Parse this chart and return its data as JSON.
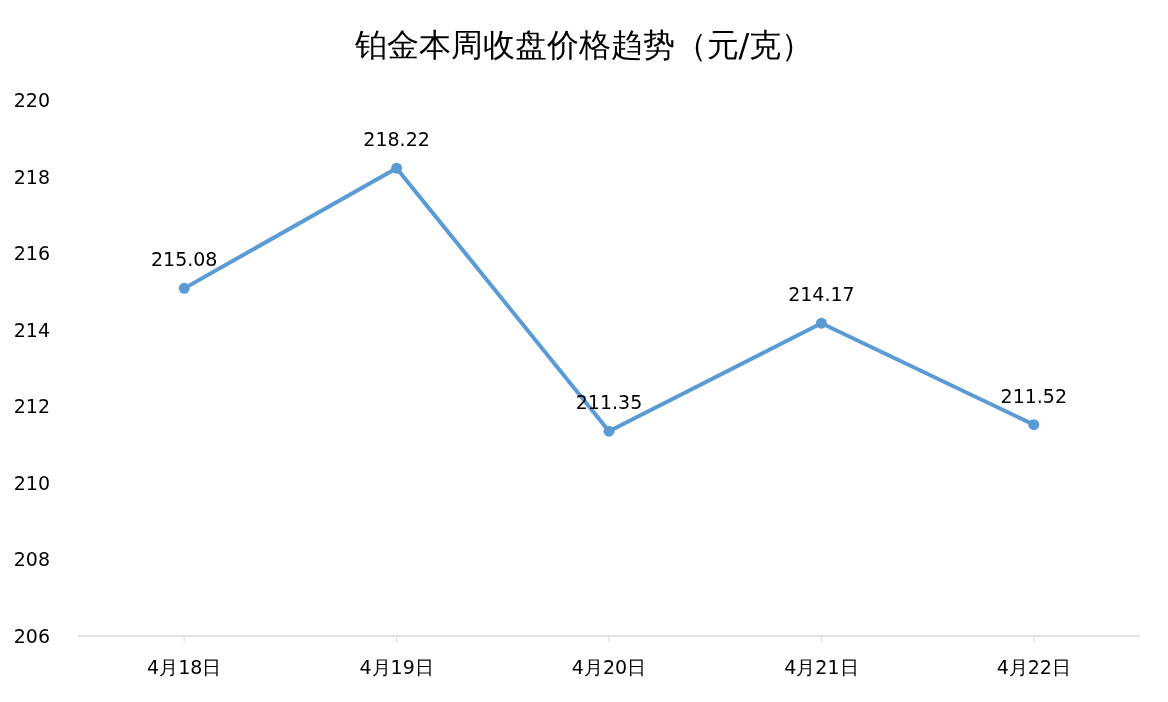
{
  "chart_data": {
    "type": "line",
    "title": "铂金本周收盘价格趋势（元/克）",
    "categories": [
      "4月18日",
      "4月19日",
      "4月20日",
      "4月21日",
      "4月22日"
    ],
    "values": [
      215.08,
      218.22,
      211.35,
      214.17,
      211.52
    ],
    "color": "#5b9bd5",
    "marker": "circle",
    "data_labels": true,
    "ylim": [
      206,
      220
    ],
    "yticks": [
      206,
      208,
      210,
      212,
      214,
      216,
      218,
      220
    ]
  }
}
